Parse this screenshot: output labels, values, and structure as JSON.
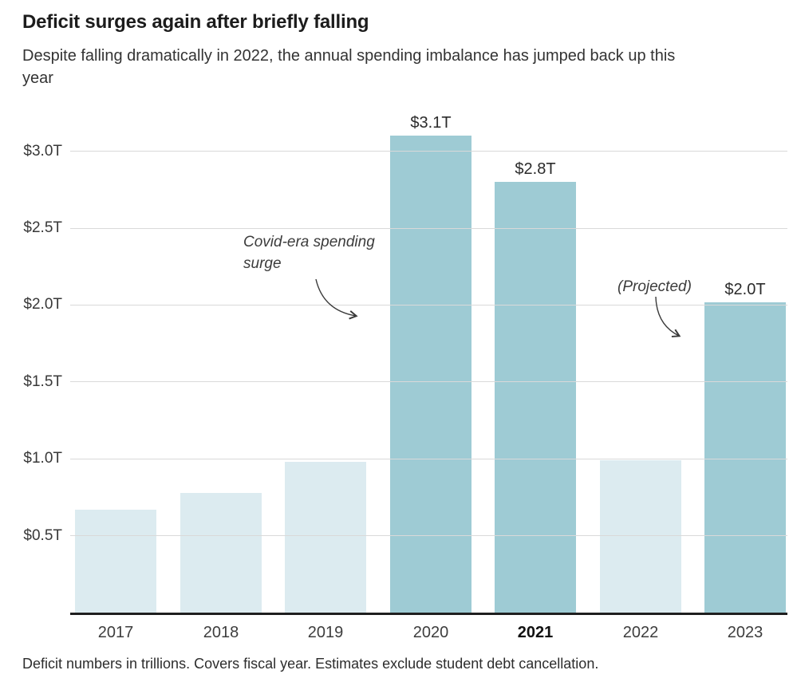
{
  "chart_data": {
    "type": "bar",
    "title": "Deficit surges again after briefly falling",
    "subtitle": "Despite falling dramatically in 2022, the annual spending imbalance has jumped back up this year",
    "note": "Deficit numbers in trillions. Covers fiscal year. Estimates exclude student debt cancellation.",
    "unit": "USD trillions",
    "categories": [
      "2017",
      "2018",
      "2019",
      "2020",
      "2021",
      "2022",
      "2023"
    ],
    "values": [
      0.67,
      0.78,
      0.98,
      3.1,
      2.8,
      0.99,
      2.02
    ],
    "value_labels": [
      "",
      "",
      "",
      "$3.1T",
      "$2.8T",
      "",
      "$2.0T"
    ],
    "highlighted": [
      false,
      false,
      false,
      true,
      true,
      false,
      true
    ],
    "emphasis_category": "2021",
    "yticks": [
      0.5,
      1.0,
      1.5,
      2.0,
      2.5,
      3.0
    ],
    "ytick_labels": [
      "$0.5T",
      "$1.0T",
      "$1.5T",
      "$2.0T",
      "$2.5T",
      "$3.0T"
    ],
    "ylim": [
      0,
      3.26
    ],
    "xlabel": "",
    "ylabel": "",
    "grid": true,
    "legend": false,
    "annotations": [
      {
        "text": "Covid-era spending surge",
        "points_to": "2020"
      },
      {
        "text": "(Projected)",
        "points_to": "2023"
      }
    ],
    "colors": {
      "highlight": "#9ecbd4",
      "base": "#dcebf0",
      "grid": "#d9d9d9",
      "axis": "#1f1f1f"
    }
  }
}
